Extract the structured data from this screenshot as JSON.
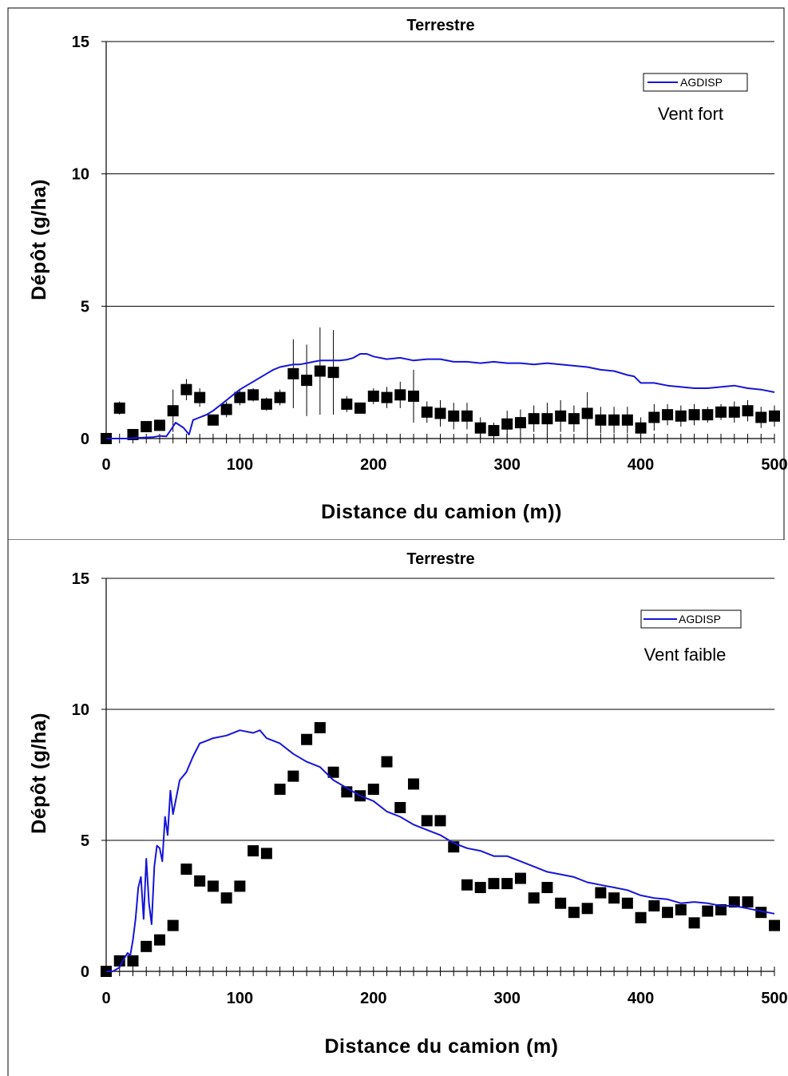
{
  "chart_data": [
    {
      "type": "scatter",
      "title": "Terrestre",
      "xlabel": "Distance du camion (m))",
      "ylabel": "Dépôt (g/ha)",
      "xlim": [
        0,
        500
      ],
      "ylim": [
        0,
        15
      ],
      "x_ticks": [
        "0",
        "100",
        "200",
        "300",
        "400",
        "500"
      ],
      "y_ticks": [
        "0",
        "5",
        "10",
        "15"
      ],
      "grid": "horizontal",
      "legend": {
        "position": "top-right",
        "entries": [
          "AGDISP"
        ]
      },
      "annotation": "Vent fort",
      "colors": {
        "line": "#1515d8",
        "marker": "#000000",
        "grid": "#000000"
      },
      "series": [
        {
          "name": "AGDISP",
          "kind": "line",
          "x": [
            0,
            15,
            25,
            35,
            40,
            45,
            48,
            52,
            55,
            58,
            62,
            65,
            70,
            75,
            80,
            85,
            90,
            95,
            100,
            105,
            110,
            115,
            120,
            125,
            130,
            135,
            140,
            145,
            150,
            155,
            160,
            165,
            170,
            175,
            180,
            185,
            190,
            195,
            200,
            210,
            220,
            230,
            240,
            250,
            260,
            270,
            280,
            290,
            300,
            310,
            320,
            330,
            340,
            350,
            360,
            370,
            380,
            390,
            395,
            400,
            410,
            420,
            430,
            440,
            450,
            460,
            470,
            480,
            490,
            500
          ],
          "y": [
            0,
            0,
            0.03,
            0.05,
            0.1,
            0.08,
            0.3,
            0.6,
            0.5,
            0.4,
            0.15,
            0.7,
            0.8,
            0.9,
            1.05,
            1.25,
            1.45,
            1.65,
            1.85,
            2.0,
            2.15,
            2.3,
            2.45,
            2.6,
            2.7,
            2.75,
            2.8,
            2.8,
            2.85,
            2.9,
            2.95,
            2.95,
            2.95,
            2.95,
            2.98,
            3.05,
            3.2,
            3.2,
            3.1,
            3.0,
            3.05,
            2.95,
            3.0,
            3.0,
            2.9,
            2.9,
            2.85,
            2.9,
            2.85,
            2.85,
            2.8,
            2.85,
            2.8,
            2.75,
            2.7,
            2.6,
            2.55,
            2.4,
            2.35,
            2.1,
            2.1,
            2.0,
            1.95,
            1.9,
            1.9,
            1.95,
            2.0,
            1.9,
            1.85,
            1.75
          ]
        },
        {
          "kind": "scatter-errorbar",
          "x": [
            0,
            10,
            20,
            30,
            40,
            50,
            60,
            70,
            80,
            90,
            100,
            110,
            120,
            130,
            140,
            150,
            160,
            170,
            180,
            190,
            200,
            210,
            220,
            230,
            240,
            250,
            260,
            270,
            280,
            290,
            300,
            310,
            320,
            330,
            340,
            350,
            360,
            370,
            380,
            390,
            400,
            410,
            420,
            430,
            440,
            450,
            460,
            470,
            480,
            490,
            500
          ],
          "y": [
            0,
            1.15,
            0.15,
            0.45,
            0.5,
            1.05,
            1.85,
            1.55,
            0.7,
            1.1,
            1.55,
            1.65,
            1.3,
            1.55,
            2.45,
            2.2,
            2.55,
            2.5,
            1.3,
            1.15,
            1.6,
            1.55,
            1.65,
            1.6,
            1.0,
            0.95,
            0.85,
            0.85,
            0.4,
            0.3,
            0.55,
            0.6,
            0.75,
            0.75,
            0.85,
            0.75,
            0.95,
            0.7,
            0.7,
            0.7,
            0.4,
            0.8,
            0.9,
            0.85,
            0.9,
            0.9,
            1.0,
            1.0,
            1.05,
            0.8,
            0.85
          ],
          "err": [
            0,
            0.25,
            0.1,
            0.15,
            0.2,
            0.8,
            0.4,
            0.35,
            0.15,
            0.3,
            0.3,
            0.25,
            0.25,
            0.3,
            1.3,
            1.35,
            1.65,
            1.6,
            0.3,
            0.2,
            0.3,
            0.4,
            0.5,
            1.0,
            0.4,
            0.5,
            0.5,
            0.5,
            0.4,
            0.3,
            0.5,
            0.5,
            0.5,
            0.6,
            0.6,
            0.5,
            0.8,
            0.5,
            0.5,
            0.5,
            0.4,
            0.5,
            0.4,
            0.4,
            0.4,
            0.3,
            0.3,
            0.4,
            0.4,
            0.4,
            0.4
          ]
        }
      ]
    },
    {
      "type": "scatter",
      "title": "Terrestre",
      "xlabel": "Distance du camion (m)",
      "ylabel": "Dépôt (g/ha)",
      "xlim": [
        0,
        500
      ],
      "ylim": [
        0,
        15
      ],
      "x_ticks": [
        "0",
        "100",
        "200",
        "300",
        "400",
        "500"
      ],
      "y_ticks": [
        "0",
        "5",
        "10",
        "15"
      ],
      "grid": "horizontal",
      "legend": {
        "position": "top-right",
        "entries": [
          "AGDISP"
        ]
      },
      "annotation": "Vent faible",
      "colors": {
        "line": "#1515d8",
        "marker": "#000000",
        "grid": "#000000"
      },
      "series": [
        {
          "name": "AGDISP",
          "kind": "line",
          "x": [
            0,
            5,
            10,
            13,
            16,
            18,
            20,
            22,
            24,
            26,
            28,
            30,
            32,
            34,
            36,
            38,
            40,
            42,
            44,
            46,
            48,
            50,
            55,
            60,
            65,
            70,
            75,
            80,
            90,
            100,
            110,
            115,
            120,
            130,
            140,
            150,
            160,
            170,
            180,
            190,
            200,
            210,
            220,
            230,
            240,
            250,
            260,
            270,
            280,
            290,
            300,
            310,
            320,
            330,
            340,
            350,
            360,
            370,
            380,
            390,
            400,
            410,
            420,
            430,
            440,
            450,
            460,
            470,
            480,
            490,
            500
          ],
          "y": [
            0,
            0,
            0.15,
            0.45,
            0.7,
            0.6,
            1.2,
            2.0,
            3.2,
            3.6,
            2.0,
            4.3,
            2.6,
            1.8,
            4.0,
            4.8,
            4.7,
            4.2,
            5.9,
            5.2,
            6.9,
            6.0,
            7.3,
            7.6,
            8.2,
            8.7,
            8.8,
            8.9,
            9.0,
            9.2,
            9.1,
            9.2,
            8.9,
            8.7,
            8.3,
            8.0,
            7.8,
            7.3,
            7.0,
            6.7,
            6.5,
            6.1,
            5.9,
            5.6,
            5.4,
            5.2,
            4.9,
            4.7,
            4.6,
            4.4,
            4.4,
            4.2,
            4.0,
            3.8,
            3.7,
            3.6,
            3.4,
            3.3,
            3.2,
            3.1,
            2.9,
            2.8,
            2.75,
            2.6,
            2.65,
            2.6,
            2.5,
            2.5,
            2.4,
            2.3,
            2.2
          ]
        },
        {
          "kind": "scatter-errorbar",
          "x": [
            0,
            10,
            20,
            30,
            40,
            50,
            60,
            70,
            80,
            90,
            100,
            110,
            120,
            130,
            140,
            150,
            160,
            170,
            180,
            190,
            200,
            210,
            220,
            230,
            240,
            250,
            260,
            270,
            280,
            290,
            300,
            310,
            320,
            330,
            340,
            350,
            360,
            370,
            380,
            390,
            400,
            410,
            420,
            430,
            440,
            450,
            460,
            470,
            480,
            490,
            500
          ],
          "y": [
            0,
            0.4,
            0.4,
            0.95,
            1.2,
            1.75,
            3.9,
            3.45,
            3.25,
            2.8,
            3.25,
            4.6,
            4.5,
            6.95,
            7.45,
            8.85,
            9.3,
            7.6,
            6.85,
            6.7,
            6.95,
            8.0,
            6.25,
            7.15,
            5.75,
            5.75,
            4.75,
            3.3,
            3.2,
            3.35,
            3.35,
            3.55,
            2.8,
            3.2,
            2.6,
            2.25,
            2.4,
            3.0,
            2.8,
            2.6,
            2.05,
            2.5,
            2.25,
            2.35,
            1.85,
            2.3,
            2.35,
            2.65,
            2.65,
            2.25,
            1.75
          ]
        }
      ]
    }
  ]
}
